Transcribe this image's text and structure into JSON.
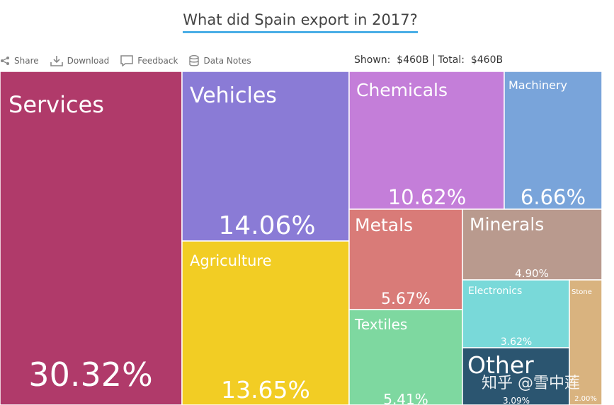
{
  "title": "What did Spain export in 2017?",
  "toolbar": {
    "share": "Share",
    "download": "Download",
    "feedback": "Feedback",
    "data_notes": "Data Notes"
  },
  "totals": {
    "shown_label": "Shown:",
    "shown_value": "$460B",
    "total_label": "Total:",
    "total_value": "$460B"
  },
  "watermark": "知乎 @雪中莲",
  "chart_data": {
    "type": "treemap",
    "title": "What did Spain export in 2017?",
    "items": [
      {
        "name": "Services",
        "percent": 30.32,
        "color": "#b03a6a"
      },
      {
        "name": "Vehicles",
        "percent": 14.06,
        "color": "#8a7bd6"
      },
      {
        "name": "Agriculture",
        "percent": 13.65,
        "color": "#f2cd24"
      },
      {
        "name": "Chemicals",
        "percent": 10.62,
        "color": "#c47ed9"
      },
      {
        "name": "Machinery",
        "percent": 6.66,
        "color": "#79a4da"
      },
      {
        "name": "Metals",
        "percent": 5.67,
        "color": "#d97b78"
      },
      {
        "name": "Minerals",
        "percent": 4.9,
        "color": "#b99a8e"
      },
      {
        "name": "Textiles",
        "percent": 5.41,
        "color": "#7ed8a0"
      },
      {
        "name": "Electronics",
        "percent": 3.62,
        "color": "#79d9d9"
      },
      {
        "name": "Other",
        "percent": 3.09,
        "color": "#2b5570"
      },
      {
        "name": "Stone",
        "percent": 2.0,
        "color": "#d9b37f"
      }
    ]
  }
}
